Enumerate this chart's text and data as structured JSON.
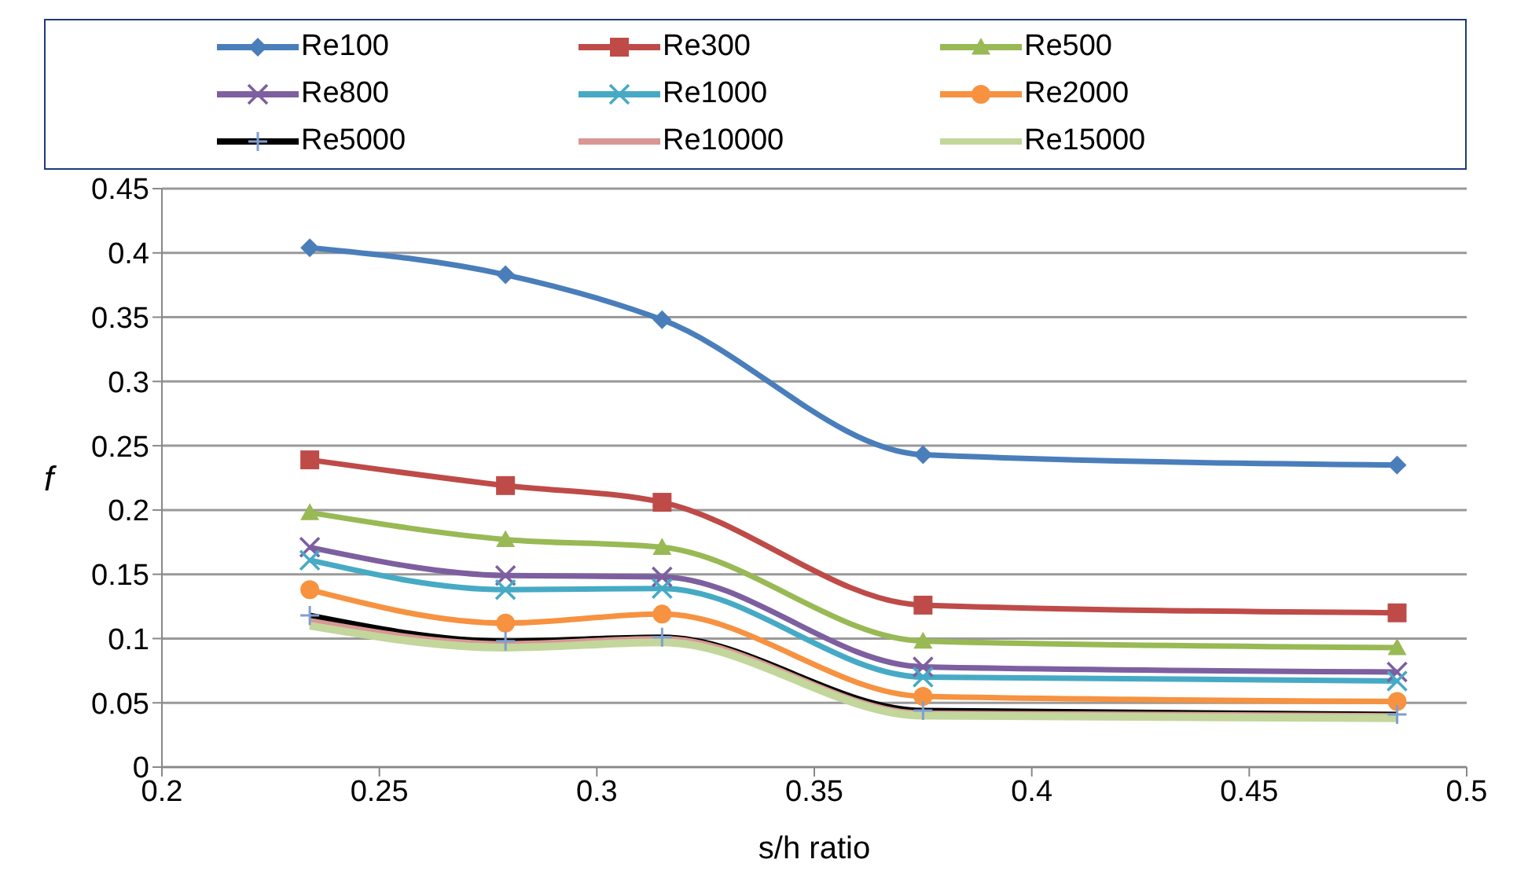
{
  "chart_data": {
    "type": "line",
    "xlabel": "s/h ratio",
    "ylabel": "f",
    "x": [
      0.234,
      0.279,
      0.315,
      0.375,
      0.484
    ],
    "series": [
      {
        "name": "Re100",
        "color": "#4a7ebb",
        "marker": "diamond",
        "values": [
          0.404,
          0.383,
          0.348,
          0.243,
          0.235
        ]
      },
      {
        "name": "Re300",
        "color": "#be4b48",
        "marker": "square",
        "values": [
          0.239,
          0.219,
          0.206,
          0.126,
          0.12
        ]
      },
      {
        "name": "Re500",
        "color": "#98b954",
        "marker": "triangle",
        "values": [
          0.198,
          0.177,
          0.171,
          0.098,
          0.093
        ]
      },
      {
        "name": "Re800",
        "color": "#7d5fa0",
        "marker": "cross",
        "values": [
          0.171,
          0.149,
          0.148,
          0.078,
          0.074
        ]
      },
      {
        "name": "Re1000",
        "color": "#46aac5",
        "marker": "cross",
        "values": [
          0.161,
          0.138,
          0.139,
          0.07,
          0.067
        ]
      },
      {
        "name": "Re2000",
        "color": "#f69240",
        "marker": "circle",
        "values": [
          0.138,
          0.112,
          0.119,
          0.055,
          0.051
        ]
      },
      {
        "name": "Re5000",
        "color": "#000000",
        "marker": "plus",
        "values": [
          0.118,
          0.098,
          0.101,
          0.044,
          0.041
        ]
      },
      {
        "name": "Re10000",
        "color": "#d99694",
        "marker": "none",
        "values": [
          0.113,
          0.095,
          0.099,
          0.041,
          0.039
        ]
      },
      {
        "name": "Re15000",
        "color": "#c3d69b",
        "marker": "none",
        "values": [
          0.11,
          0.093,
          0.097,
          0.04,
          0.038
        ]
      }
    ],
    "xlim": [
      0.2,
      0.5
    ],
    "xticks": [
      0.2,
      0.25,
      0.3,
      0.35,
      0.4,
      0.45,
      0.5
    ],
    "ylim": [
      0,
      0.45
    ],
    "yticks": [
      0,
      0.05,
      0.1,
      0.15,
      0.2,
      0.25,
      0.3,
      0.35,
      0.4,
      0.45
    ],
    "grid": "y",
    "legend": "top",
    "line_style": "solid"
  }
}
